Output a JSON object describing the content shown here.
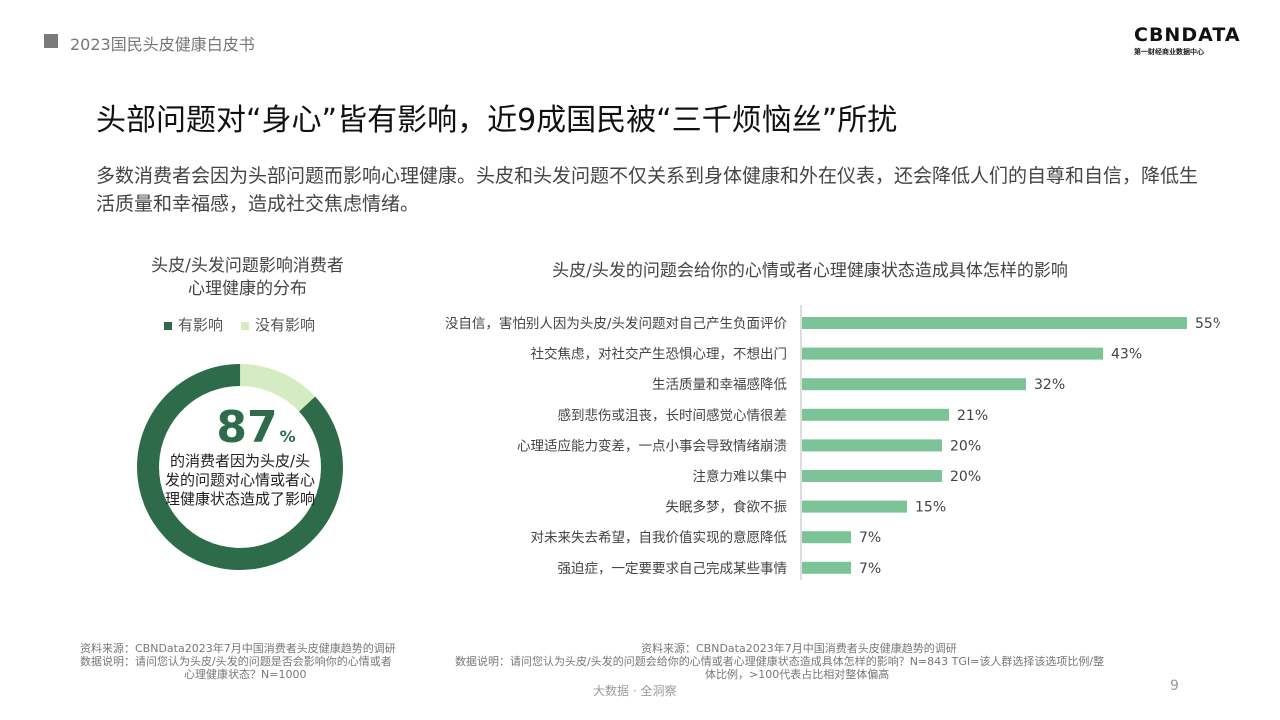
{
  "header": {
    "doc_title": "2023国民头皮健康白皮书"
  },
  "logo": {
    "main": "CBNDATA",
    "sub": "第一财经商业数据中心"
  },
  "title": "头部问题对“身心”皆有影响，近9成国民被“三千烦恼丝”所扰",
  "description": "多数消费者会因为头部问题而影响心理健康。头皮和头发问题不仅关系到身体健康和外在仪表，还会降低人们的自尊和自信，降低生活质量和幸福感，造成社交焦虑情绪。",
  "left_chart": {
    "title_line1": "头皮/头发问题影响消费者",
    "title_line2": "心理健康的分布",
    "legend": [
      "有影响",
      "没有影响"
    ],
    "center_value": "87",
    "center_unit": "%",
    "caption": "的消费者因为头皮/头发的问题对心情或者心理健康状态造成了影响"
  },
  "right_chart": {
    "title": "头皮/头发的问题会给你的心情或者心理健康状态造成具体怎样的影响"
  },
  "chart_data": [
    {
      "type": "pie",
      "title": "头皮/头发问题影响消费者心理健康的分布",
      "categories": [
        "有影响",
        "没有影响"
      ],
      "values": [
        87,
        13
      ],
      "colors": [
        "#2e6b4b",
        "#d5ecc2"
      ],
      "donut": true
    },
    {
      "type": "bar",
      "orientation": "horizontal",
      "title": "头皮/头发的问题会给你的心情或者心理健康状态造成具体怎样的影响",
      "categories": [
        "没自信，害怕别人因为头皮/头发问题对自己产生负面评价",
        "社交焦虑，对社交产生恐惧心理，不想出门",
        "生活质量和幸福感降低",
        "感到悲伤或沮丧，长时间感觉心情很差",
        "心理适应能力变差，一点小事会导致情绪崩溃",
        "注意力难以集中",
        "失眠多梦，食欲不振",
        "对未来失去希望，自我价值实现的意愿降低",
        "强迫症，一定要要求自己完成某些事情"
      ],
      "values": [
        55,
        43,
        32,
        21,
        20,
        20,
        15,
        7,
        7
      ],
      "value_labels": [
        "55%",
        "43%",
        "32%",
        "21%",
        "20%",
        "20%",
        "15%",
        "7%",
        "7%"
      ],
      "bar_color": "#7cc398"
    }
  ],
  "sources": {
    "left_line1": "资料来源：CBNData2023年7月中国消费者头皮健康趋势的调研",
    "left_line2": "数据说明：请问您认为头皮/头发的问题是否会影响你的心情或者",
    "left_line3": "心理健康状态？N=1000",
    "right_line1": "资料来源：CBNData2023年7月中国消费者头皮健康趋势的调研",
    "right_line2": "数据说明：请问您认为头皮/头发的问题会给你的心情或者心理健康状态造成具体怎样的影响？N=843 TGI=该人群选择该选项比例/整",
    "right_line3": "体比例，>100代表占比相对整体偏高"
  },
  "footer": {
    "tagline": "大数据 · 全洞察",
    "page": "9"
  }
}
